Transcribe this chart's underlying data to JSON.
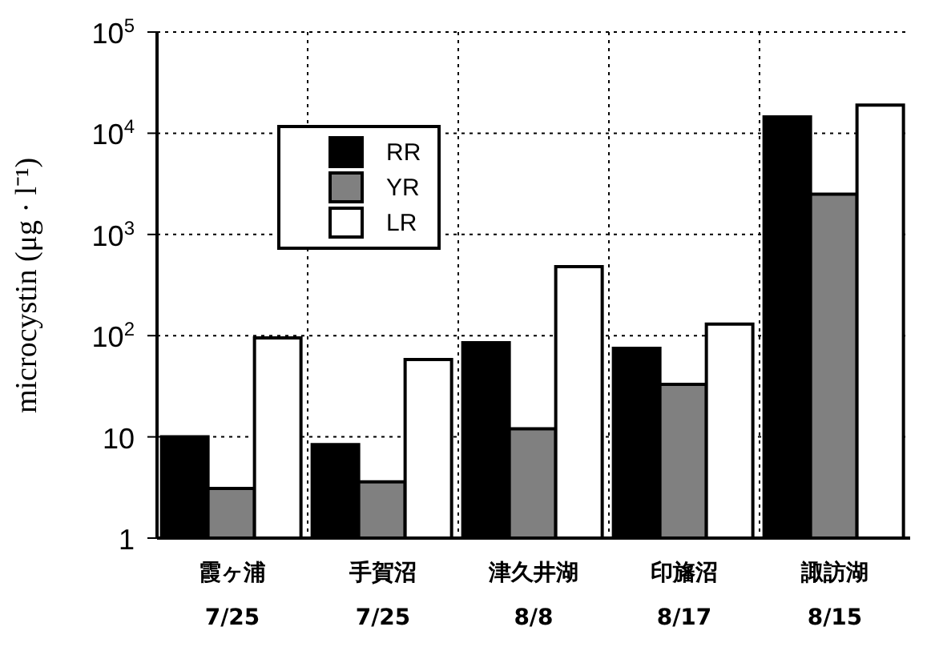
{
  "chart_data": {
    "type": "bar",
    "ylabel": "microcystin (μg · l⁻¹)",
    "log": "y",
    "categories": [
      "霞ヶ浦\n7/25",
      "手賀沼\n7/25",
      "津久井湖\n8/8",
      "印旛沼\n8/17",
      "諏訪湖\n8/15"
    ],
    "series": [
      {
        "name": "RR",
        "color": "#000000",
        "values": [
          10,
          8.4,
          85,
          75,
          14500
        ]
      },
      {
        "name": "YR",
        "color": "#808080",
        "values": [
          3.1,
          3.6,
          12,
          33,
          2500
        ]
      },
      {
        "name": "LR",
        "color": "#ffffff",
        "values": [
          95,
          58,
          480,
          130,
          19000
        ]
      }
    ],
    "ylim": [
      1,
      100000
    ],
    "yticks": [
      {
        "value": 1,
        "label": "1"
      },
      {
        "value": 10,
        "label": "10"
      },
      {
        "value": 100,
        "label": "10$^{2}$"
      },
      {
        "value": 1000,
        "label": "10$^{3}$"
      },
      {
        "value": 10000,
        "label": "10$^{4}$"
      },
      {
        "value": 100000,
        "label": "10$^{5}$"
      }
    ],
    "grid": true,
    "legend": "top left"
  }
}
